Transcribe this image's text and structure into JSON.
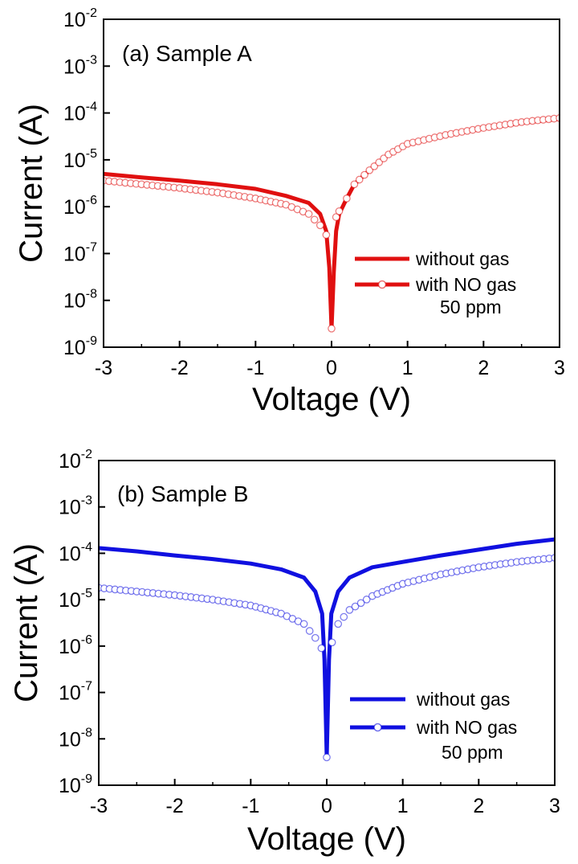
{
  "chart_data": [
    {
      "type": "line",
      "title": "(a) Sample A",
      "xlabel": "Voltage (V)",
      "ylabel": "Current (A)",
      "xlim": [
        -3,
        3
      ],
      "ylim": [
        1e-09,
        0.01
      ],
      "yscale": "log",
      "x_ticks": [
        "-3",
        "-2",
        "-1",
        "0",
        "1",
        "2",
        "3"
      ],
      "y_ticks": [
        {
          "base": "10",
          "exp": "-9"
        },
        {
          "base": "10",
          "exp": "-8"
        },
        {
          "base": "10",
          "exp": "-7"
        },
        {
          "base": "10",
          "exp": "-6"
        },
        {
          "base": "10",
          "exp": "-5"
        },
        {
          "base": "10",
          "exp": "-4"
        },
        {
          "base": "10",
          "exp": "-3"
        },
        {
          "base": "10",
          "exp": "-2"
        }
      ],
      "legend_position": "right",
      "legend_note": "50 ppm",
      "color": "#e01010",
      "series": [
        {
          "name": "without  gas",
          "style": "line",
          "points": [
            [
              -3,
              5e-06
            ],
            [
              -2.5,
              4.2e-06
            ],
            [
              -2,
              3.6e-06
            ],
            [
              -1.5,
              3e-06
            ],
            [
              -1,
              2.4e-06
            ],
            [
              -0.6,
              1.7e-06
            ],
            [
              -0.3,
              1.2e-06
            ],
            [
              -0.15,
              7e-07
            ],
            [
              -0.07,
              3e-07
            ],
            [
              -0.03,
              5e-08
            ],
            [
              0,
              2.5e-09
            ],
            [
              0.03,
              4e-08
            ],
            [
              0.06,
              3e-07
            ],
            [
              0.1,
              7e-07
            ],
            [
              0.2,
              1.5e-06
            ],
            [
              0.3,
              3e-06
            ],
            [
              0.5,
              6e-06
            ],
            [
              0.75,
              1.3e-05
            ],
            [
              1,
              2.2e-05
            ],
            [
              1.5,
              3.4e-05
            ],
            [
              2,
              4.7e-05
            ],
            [
              2.5,
              6.2e-05
            ],
            [
              3,
              7.5e-05
            ]
          ]
        },
        {
          "name": "with NO gas",
          "style": "markers",
          "points": [
            [
              -3,
              3.6e-06
            ],
            [
              -2.5,
              3e-06
            ],
            [
              -2,
              2.5e-06
            ],
            [
              -1.5,
              2e-06
            ],
            [
              -1,
              1.5e-06
            ],
            [
              -0.6,
              1.1e-06
            ],
            [
              -0.3,
              7e-07
            ],
            [
              -0.15,
              4e-07
            ],
            [
              -0.07,
              2.5e-07
            ],
            [
              0,
              2.5e-09
            ],
            [
              0.06,
              6e-07
            ],
            [
              0.1,
              8e-07
            ],
            [
              0.2,
              1.5e-06
            ],
            [
              0.3,
              3e-06
            ],
            [
              0.5,
              6e-06
            ],
            [
              0.75,
              1.3e-05
            ],
            [
              1,
              2.2e-05
            ],
            [
              1.5,
              3.4e-05
            ],
            [
              2,
              4.8e-05
            ],
            [
              2.5,
              6.4e-05
            ],
            [
              3,
              7.8e-05
            ]
          ]
        }
      ]
    },
    {
      "type": "line",
      "title": "(b) Sample B",
      "xlabel": "Voltage (V)",
      "ylabel": "Current (A)",
      "xlim": [
        -3,
        3
      ],
      "ylim": [
        1e-09,
        0.01
      ],
      "yscale": "log",
      "x_ticks": [
        "-3",
        "-2",
        "-1",
        "0",
        "1",
        "2",
        "3"
      ],
      "y_ticks": [
        {
          "base": "10",
          "exp": "-9"
        },
        {
          "base": "10",
          "exp": "-8"
        },
        {
          "base": "10",
          "exp": "-7"
        },
        {
          "base": "10",
          "exp": "-6"
        },
        {
          "base": "10",
          "exp": "-5"
        },
        {
          "base": "10",
          "exp": "-4"
        },
        {
          "base": "10",
          "exp": "-3"
        },
        {
          "base": "10",
          "exp": "-2"
        }
      ],
      "legend_position": "right",
      "legend_note": "50 ppm",
      "color": "#1010e0",
      "series": [
        {
          "name": "without  gas",
          "style": "line",
          "points": [
            [
              -3,
              0.00013
            ],
            [
              -2.5,
              0.00011
            ],
            [
              -2,
              9e-05
            ],
            [
              -1.5,
              7.5e-05
            ],
            [
              -1,
              6e-05
            ],
            [
              -0.6,
              4.5e-05
            ],
            [
              -0.3,
              3e-05
            ],
            [
              -0.15,
              1.5e-05
            ],
            [
              -0.06,
              5e-06
            ],
            [
              -0.03,
              5e-07
            ],
            [
              0,
              4e-09
            ],
            [
              0.03,
              5e-07
            ],
            [
              0.06,
              5e-06
            ],
            [
              0.15,
              1.5e-05
            ],
            [
              0.3,
              3e-05
            ],
            [
              0.6,
              5e-05
            ],
            [
              1,
              6.5e-05
            ],
            [
              1.5,
              9e-05
            ],
            [
              2,
              0.00012
            ],
            [
              2.5,
              0.00016
            ],
            [
              3,
              0.0002
            ]
          ]
        },
        {
          "name": "with NO gas",
          "style": "markers",
          "points": [
            [
              -3,
              1.8e-05
            ],
            [
              -2.5,
              1.5e-05
            ],
            [
              -2,
              1.25e-05
            ],
            [
              -1.5,
              1e-05
            ],
            [
              -1,
              7.5e-06
            ],
            [
              -0.6,
              5e-06
            ],
            [
              -0.3,
              3e-06
            ],
            [
              -0.15,
              1.5e-06
            ],
            [
              -0.07,
              9e-07
            ],
            [
              0,
              4e-09
            ],
            [
              0.07,
              1.2e-06
            ],
            [
              0.15,
              3e-06
            ],
            [
              0.3,
              6e-06
            ],
            [
              0.6,
              1.2e-05
            ],
            [
              1,
              2.2e-05
            ],
            [
              1.5,
              3.5e-05
            ],
            [
              2,
              5e-05
            ],
            [
              2.5,
              6.5e-05
            ],
            [
              3,
              8e-05
            ]
          ]
        }
      ]
    }
  ]
}
